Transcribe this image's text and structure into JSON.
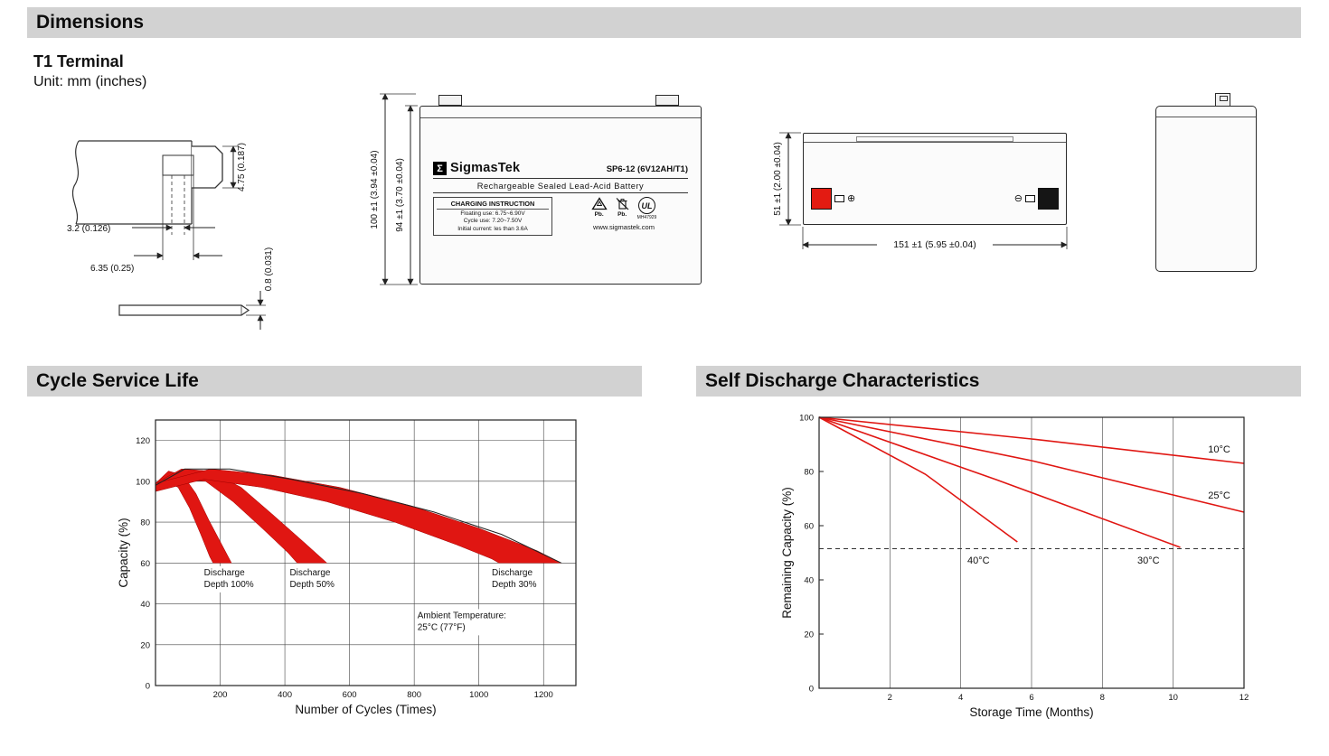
{
  "sections": {
    "dimensions_title": "Dimensions",
    "cycle_title": "Cycle Service Life",
    "self_discharge_title": "Self Discharge Characteristics"
  },
  "terminal": {
    "title": "T1 Terminal",
    "unit_note": "Unit: mm (inches)",
    "dims": {
      "tab_height": "4.75 (0.187)",
      "slot_width": "3.2 (0.126)",
      "base_width": "6.35 (0.25)",
      "blade_thickness": "0.8 (0.031)"
    }
  },
  "front_view": {
    "dim_total_height": "100 ±1 (3.94 ±0.04)",
    "dim_case_height": "94 ±1 (3.70 ±0.04)",
    "label": {
      "sigma": "Σ",
      "brand": "SigmasTek",
      "model": "SP6-12 (6V12AH/T1)",
      "type_line": "Rechargeable Sealed Lead-Acid Battery",
      "charging_title": "CHARGING INSTRUCTION",
      "charging_line1": "Floating use: 6.75~6.90V",
      "charging_line2": "Cycle use: 7.20~7.50V",
      "charging_line3": "Initial current: les than 3.6A",
      "pb1": "Pb.",
      "pb2": "Pb.",
      "ul_text": "UL",
      "ul_code": "MH47929",
      "website": "www.sigmastek.com"
    }
  },
  "side_view": {
    "dim_height": "51 ±1 (2.00 ±0.04)",
    "dim_length": "151 ±1 (5.95 ±0.04)",
    "plus": "⊕",
    "minus": "⊖"
  },
  "chart_data": [
    {
      "id": "cycle-chart",
      "type": "area",
      "title": "Cycle Service Life",
      "xlabel": "Number of Cycles (Times)",
      "ylabel": "Capacity (%)",
      "xlim": [
        0,
        1300
      ],
      "ylim": [
        0,
        130
      ],
      "xticks": [
        200,
        400,
        600,
        800,
        1000,
        1200
      ],
      "yticks": [
        0,
        20,
        40,
        60,
        80,
        100,
        120
      ],
      "grid": "both",
      "color": "#e01612",
      "bands": [
        {
          "name": "Discharge Depth 100%",
          "upper": [
            [
              0,
              99
            ],
            [
              40,
              105
            ],
            [
              85,
              103
            ],
            [
              125,
              94
            ],
            [
              165,
              81
            ],
            [
              205,
              69
            ],
            [
              235,
              60
            ]
          ],
          "lower": [
            [
              0,
              95
            ],
            [
              35,
              100
            ],
            [
              70,
              97
            ],
            [
              105,
              87
            ],
            [
              140,
              74
            ],
            [
              168,
              63
            ],
            [
              178,
              60
            ]
          ]
        },
        {
          "name": "Discharge Depth 50%",
          "upper": [
            [
              0,
              99
            ],
            [
              80,
              106
            ],
            [
              170,
              105
            ],
            [
              265,
              97
            ],
            [
              360,
              84
            ],
            [
              460,
              70
            ],
            [
              530,
              60
            ]
          ],
          "lower": [
            [
              0,
              95
            ],
            [
              70,
              101
            ],
            [
              155,
              100
            ],
            [
              240,
              90
            ],
            [
              330,
              77
            ],
            [
              410,
              65
            ],
            [
              438,
              60
            ]
          ]
        },
        {
          "name": "Discharge Depth 30%",
          "upper": [
            [
              0,
              99
            ],
            [
              170,
              106
            ],
            [
              360,
              103
            ],
            [
              570,
              97
            ],
            [
              790,
              88
            ],
            [
              1000,
              77
            ],
            [
              1180,
              66
            ],
            [
              1255,
              60
            ]
          ],
          "lower": [
            [
              0,
              95
            ],
            [
              150,
              101
            ],
            [
              330,
              97
            ],
            [
              530,
              90
            ],
            [
              740,
              80
            ],
            [
              930,
              69
            ],
            [
              1040,
              62
            ],
            [
              1062,
              60
            ]
          ]
        }
      ],
      "envelope": [
        [
          0,
          98
        ],
        [
          90,
          106
        ],
        [
          230,
          106
        ],
        [
          420,
          101
        ],
        [
          640,
          94
        ],
        [
          860,
          85
        ],
        [
          1070,
          74
        ],
        [
          1255,
          60
        ]
      ],
      "annotations": [
        {
          "x": 150,
          "y": 54,
          "text": "Discharge\nDepth 100%"
        },
        {
          "x": 415,
          "y": 54,
          "text": "Discharge\nDepth 50%"
        },
        {
          "x": 1040,
          "y": 54,
          "text": "Discharge\nDepth 30%"
        },
        {
          "x": 810,
          "y": 33,
          "text": "Ambient Temperature:\n25°C (77°F)"
        }
      ]
    },
    {
      "id": "discharge-chart",
      "type": "line",
      "title": "Self Discharge Characteristics",
      "xlabel": "Storage Time (Months)",
      "ylabel": "Remaining Capacity (%)",
      "xlim": [
        0,
        12
      ],
      "ylim": [
        0,
        100
      ],
      "xticks": [
        2,
        4,
        6,
        8,
        10,
        12
      ],
      "yticks": [
        0,
        20,
        40,
        60,
        80,
        100
      ],
      "grid": "x",
      "color": "#e01612",
      "series": [
        {
          "name": "10°C",
          "points": [
            [
              0,
              100
            ],
            [
              6,
              92
            ],
            [
              12,
              83
            ]
          ],
          "label_at": [
            11.3,
            87
          ]
        },
        {
          "name": "25°C",
          "points": [
            [
              0,
              100
            ],
            [
              6,
              84
            ],
            [
              12,
              65
            ]
          ],
          "label_at": [
            11.3,
            70
          ]
        },
        {
          "name": "30°C",
          "points": [
            [
              0,
              100
            ],
            [
              5,
              77
            ],
            [
              10.2,
              52
            ]
          ],
          "label_at": [
            9.3,
            46
          ]
        },
        {
          "name": "40°C",
          "points": [
            [
              0,
              100
            ],
            [
              3,
              79
            ],
            [
              5.6,
              54
            ]
          ],
          "label_at": [
            4.5,
            46
          ]
        }
      ],
      "ref_line": {
        "y": 51.5,
        "style": "dashed"
      }
    }
  ]
}
